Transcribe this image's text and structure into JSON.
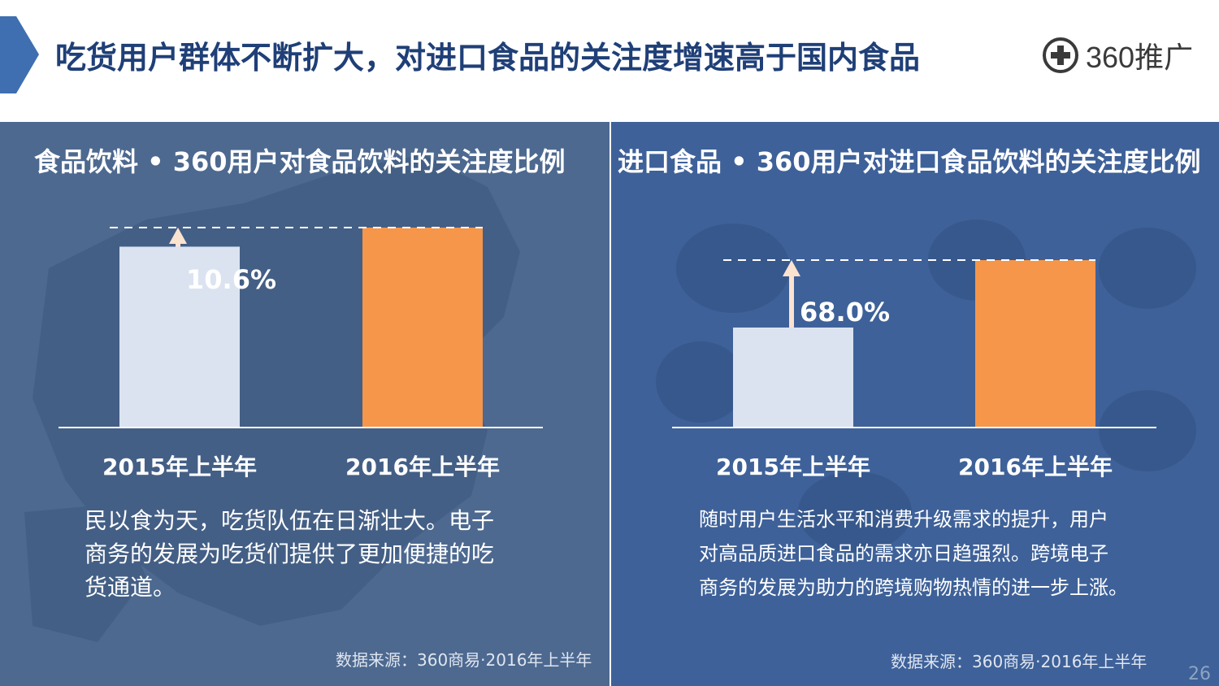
{
  "header": {
    "title": "吃货用户群体不断扩大，对进口食品的关注度增速高于国内食品",
    "logo_text": "360推广",
    "logo_icon": "plus-circle-icon"
  },
  "colors": {
    "title": "#1f3f77",
    "bar_2015": "#dbe3f1",
    "bar_2016": "#f5964a",
    "panel_left": "#4d6990",
    "panel_right": "#3e6199"
  },
  "left_panel": {
    "title": "食品饮料 • 360用户对食品饮料的关注度比例",
    "growth_label": "10.6%",
    "description": "民以食为天，吃货队伍在日渐壮大。电子商务的发展为吃货们提供了更加便捷的吃货通道。",
    "desc_lines": [
      "民以食为天，吃货队伍在日渐壮大。电子",
      "商务的发展为吃货们提供了更加便捷的吃",
      "货通道。"
    ],
    "source": "数据来源：360商易·2016年上半年"
  },
  "right_panel": {
    "title": "进口食品 • 360用户对进口食品饮料的关注度比例",
    "growth_label": "68.0%",
    "desc_lines": [
      "随时用户生活水平和消费升级需求的提升，用户",
      "对高品质进口食品的需求亦日趋强烈。跨境电子",
      "商务的发展为助力的跨境购物热情的进一步上涨。"
    ],
    "source": "数据来源：360商易·2016年上半年"
  },
  "page_number": "26",
  "chart_data": [
    {
      "type": "bar",
      "title": "食品饮料 • 360用户对食品饮料的关注度比例",
      "categories": [
        "2015年上半年",
        "2016年上半年"
      ],
      "values": [
        100,
        110.6
      ],
      "annotation": "10.6%",
      "xlabel": "",
      "ylabel": ""
    },
    {
      "type": "bar",
      "title": "进口食品 • 360用户对进口食品饮料的关注度比例",
      "categories": [
        "2015年上半年",
        "2016年上半年"
      ],
      "values": [
        100,
        168.0
      ],
      "annotation": "68.0%",
      "xlabel": "",
      "ylabel": ""
    }
  ]
}
